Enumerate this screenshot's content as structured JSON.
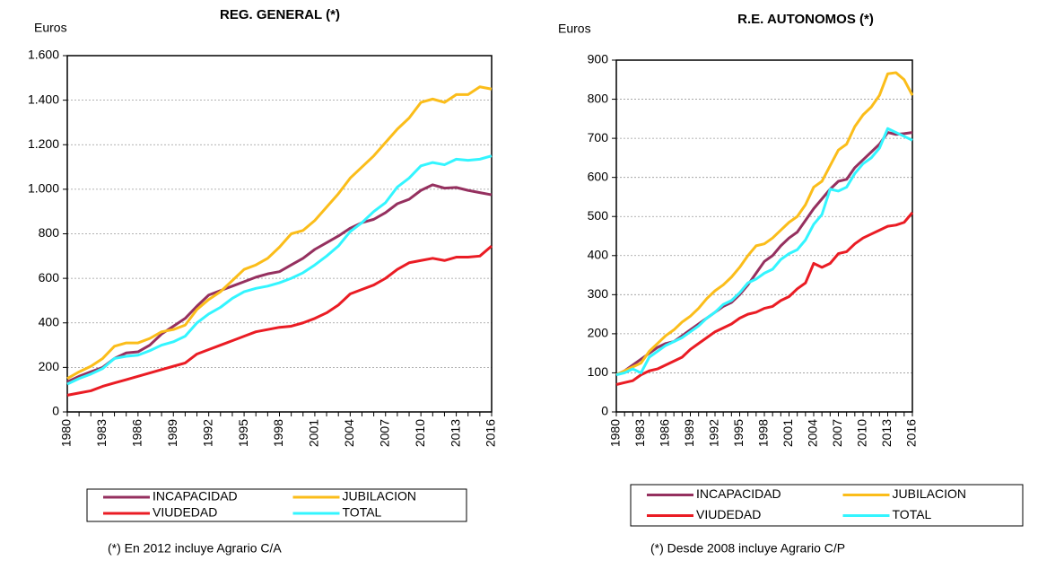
{
  "chart_data": [
    {
      "type": "line",
      "title": "REG. GENERAL (*)",
      "y_label": "Euros",
      "note": "(*) En 2012 incluye Agrario C/A",
      "x": [
        1980,
        1981,
        1982,
        1983,
        1984,
        1985,
        1986,
        1987,
        1988,
        1989,
        1990,
        1991,
        1992,
        1993,
        1994,
        1995,
        1996,
        1997,
        1998,
        1999,
        2000,
        2001,
        2002,
        2003,
        2004,
        2005,
        2006,
        2007,
        2008,
        2009,
        2010,
        2011,
        2012,
        2013,
        2014,
        2015,
        2016
      ],
      "xlim": [
        1980,
        2016
      ],
      "xticks": [
        1980,
        1983,
        1986,
        1989,
        1992,
        1995,
        1998,
        2001,
        2004,
        2007,
        2010,
        2013,
        2016
      ],
      "ylim": [
        0,
        1600
      ],
      "yticks": [
        0,
        200,
        400,
        600,
        800,
        {
          "value": 1000,
          "label": "1.000"
        },
        {
          "value": 1200,
          "label": "1.200"
        },
        {
          "value": 1400,
          "label": "1.400"
        },
        {
          "value": 1600,
          "label": "1.600"
        }
      ],
      "grid": true,
      "series": [
        {
          "name": "INCAPACIDAD",
          "color": "#95305f",
          "values": [
            135,
            160,
            180,
            200,
            240,
            265,
            270,
            300,
            350,
            385,
            420,
            475,
            525,
            545,
            565,
            585,
            605,
            620,
            630,
            660,
            690,
            730,
            760,
            790,
            825,
            850,
            865,
            895,
            935,
            955,
            995,
            1020,
            1005,
            1008,
            995,
            985,
            975
          ]
        },
        {
          "name": "JUBILACION",
          "color": "#fbbd1a",
          "values": [
            150,
            180,
            205,
            240,
            295,
            310,
            310,
            330,
            360,
            370,
            390,
            460,
            505,
            540,
            590,
            640,
            660,
            690,
            740,
            800,
            815,
            860,
            920,
            980,
            1050,
            1100,
            1150,
            1210,
            1270,
            1320,
            1390,
            1405,
            1390,
            1425,
            1425,
            1460,
            1450
          ]
        },
        {
          "name": "VIUDEDAD",
          "color": "#ea1c24",
          "values": [
            75,
            85,
            95,
            115,
            130,
            145,
            160,
            175,
            190,
            205,
            220,
            260,
            280,
            300,
            320,
            340,
            360,
            370,
            380,
            385,
            400,
            420,
            445,
            480,
            530,
            550,
            570,
            600,
            640,
            670,
            680,
            690,
            680,
            695,
            695,
            700,
            745
          ]
        },
        {
          "name": "TOTAL",
          "color": "#33f5ff",
          "values": [
            125,
            150,
            170,
            195,
            240,
            250,
            255,
            275,
            300,
            315,
            340,
            400,
            440,
            470,
            510,
            540,
            555,
            565,
            580,
            600,
            625,
            660,
            700,
            745,
            810,
            850,
            900,
            940,
            1010,
            1050,
            1105,
            1120,
            1110,
            1135,
            1130,
            1135,
            1150
          ]
        }
      ]
    },
    {
      "type": "line",
      "title": "R.E. AUTONOMOS (*)",
      "y_label": "Euros",
      "note": "(*) Desde 2008 incluye Agrario C/P",
      "x": [
        1980,
        1981,
        1982,
        1983,
        1984,
        1985,
        1986,
        1987,
        1988,
        1989,
        1990,
        1991,
        1992,
        1993,
        1994,
        1995,
        1996,
        1997,
        1998,
        1999,
        2000,
        2001,
        2002,
        2003,
        2004,
        2005,
        2006,
        2007,
        2008,
        2009,
        2010,
        2011,
        2012,
        2013,
        2014,
        2015,
        2016
      ],
      "xlim": [
        1980,
        2016
      ],
      "xticks": [
        1980,
        1983,
        1986,
        1989,
        1992,
        1995,
        1998,
        2001,
        2004,
        2007,
        2010,
        2013,
        2016
      ],
      "ylim": [
        0,
        900
      ],
      "yticks": [
        0,
        100,
        200,
        300,
        400,
        500,
        600,
        700,
        800,
        900
      ],
      "grid": true,
      "series": [
        {
          "name": "INCAPACIDAD",
          "color": "#95305f",
          "values": [
            95,
            105,
            120,
            135,
            150,
            165,
            175,
            180,
            195,
            210,
            225,
            240,
            255,
            270,
            280,
            300,
            325,
            355,
            385,
            400,
            425,
            445,
            460,
            490,
            520,
            545,
            570,
            590,
            595,
            625,
            645,
            665,
            685,
            715,
            710,
            712,
            715
          ]
        },
        {
          "name": "JUBILACION",
          "color": "#fbbd1a",
          "values": [
            95,
            105,
            115,
            125,
            155,
            175,
            195,
            210,
            230,
            245,
            265,
            290,
            310,
            325,
            345,
            370,
            400,
            425,
            430,
            445,
            465,
            485,
            500,
            530,
            575,
            590,
            630,
            670,
            685,
            730,
            760,
            780,
            810,
            865,
            868,
            850,
            810
          ]
        },
        {
          "name": "VIUDEDAD",
          "color": "#ea1c24",
          "values": [
            70,
            75,
            80,
            95,
            105,
            110,
            120,
            130,
            140,
            160,
            175,
            190,
            205,
            215,
            225,
            240,
            250,
            255,
            265,
            270,
            285,
            295,
            315,
            330,
            380,
            370,
            380,
            405,
            410,
            430,
            445,
            455,
            465,
            475,
            478,
            485,
            510
          ]
        },
        {
          "name": "TOTAL",
          "color": "#33f5ff",
          "values": [
            95,
            100,
            110,
            100,
            140,
            155,
            170,
            180,
            190,
            205,
            220,
            240,
            255,
            275,
            285,
            305,
            330,
            340,
            355,
            365,
            390,
            405,
            415,
            440,
            480,
            505,
            570,
            565,
            575,
            610,
            635,
            650,
            675,
            725,
            715,
            705,
            695
          ]
        }
      ]
    }
  ]
}
